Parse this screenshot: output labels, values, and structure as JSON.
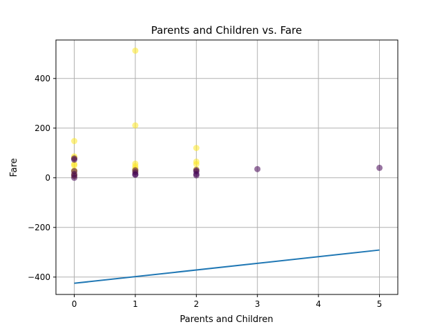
{
  "chart_data": {
    "type": "scatter",
    "title": "Parents and Children vs. Fare",
    "xlabel": "Parents and Children",
    "ylabel": "Fare",
    "xlim": [
      -0.3,
      5.3
    ],
    "ylim": [
      -470,
      555
    ],
    "xticks": [
      0,
      1,
      2,
      3,
      4,
      5
    ],
    "yticks": [
      -400,
      -200,
      0,
      200,
      400
    ],
    "xtick_labels": [
      "0",
      "1",
      "2",
      "3",
      "4",
      "5"
    ],
    "ytick_labels": [
      "−400",
      "−200",
      "0",
      "200",
      "400"
    ],
    "grid": true,
    "colors": {
      "survived": "#fde725",
      "not_survived": "#440154",
      "line": "#1f77b4",
      "grid": "#b0b0b0"
    },
    "series": [
      {
        "values": [
          {
            "x": 0,
            "y": 148,
            "group": "survived"
          },
          {
            "x": 0,
            "y": 86,
            "group": "survived"
          },
          {
            "x": 0,
            "y": 80,
            "group": "survived"
          },
          {
            "x": 0,
            "y": 55,
            "group": "survived"
          },
          {
            "x": 0,
            "y": 50,
            "group": "survived"
          },
          {
            "x": 0,
            "y": 30,
            "group": "survived"
          },
          {
            "x": 0,
            "y": 26,
            "group": "survived"
          },
          {
            "x": 0,
            "y": 13,
            "group": "survived"
          },
          {
            "x": 0,
            "y": 8,
            "group": "survived"
          },
          {
            "x": 0,
            "y": 78,
            "group": "not_survived"
          },
          {
            "x": 0,
            "y": 73,
            "group": "not_survived"
          },
          {
            "x": 0,
            "y": 27,
            "group": "not_survived"
          },
          {
            "x": 0,
            "y": 15,
            "group": "not_survived"
          },
          {
            "x": 0,
            "y": 8,
            "group": "not_survived"
          },
          {
            "x": 0,
            "y": 0,
            "group": "not_survived"
          },
          {
            "x": 1,
            "y": 512,
            "group": "survived"
          },
          {
            "x": 1,
            "y": 211,
            "group": "survived"
          },
          {
            "x": 1,
            "y": 57,
            "group": "survived"
          },
          {
            "x": 1,
            "y": 47,
            "group": "survived"
          },
          {
            "x": 1,
            "y": 39,
            "group": "survived"
          },
          {
            "x": 1,
            "y": 32,
            "group": "survived"
          },
          {
            "x": 1,
            "y": 26,
            "group": "survived"
          },
          {
            "x": 1,
            "y": 30,
            "group": "not_survived"
          },
          {
            "x": 1,
            "y": 22,
            "group": "not_survived"
          },
          {
            "x": 1,
            "y": 14,
            "group": "not_survived"
          },
          {
            "x": 1,
            "y": 12,
            "group": "not_survived"
          },
          {
            "x": 2,
            "y": 120,
            "group": "survived"
          },
          {
            "x": 2,
            "y": 65,
            "group": "survived"
          },
          {
            "x": 2,
            "y": 55,
            "group": "survived"
          },
          {
            "x": 2,
            "y": 34,
            "group": "survived"
          },
          {
            "x": 2,
            "y": 31,
            "group": "not_survived"
          },
          {
            "x": 2,
            "y": 26,
            "group": "not_survived"
          },
          {
            "x": 2,
            "y": 15,
            "group": "not_survived"
          },
          {
            "x": 2,
            "y": 10,
            "group": "not_survived"
          },
          {
            "x": 3,
            "y": 35,
            "group": "not_survived"
          },
          {
            "x": 5,
            "y": 40,
            "group": "not_survived"
          }
        ]
      },
      {
        "type": "line",
        "values": [
          {
            "x": 0,
            "y": -425
          },
          {
            "x": 5,
            "y": -291
          }
        ]
      }
    ]
  }
}
